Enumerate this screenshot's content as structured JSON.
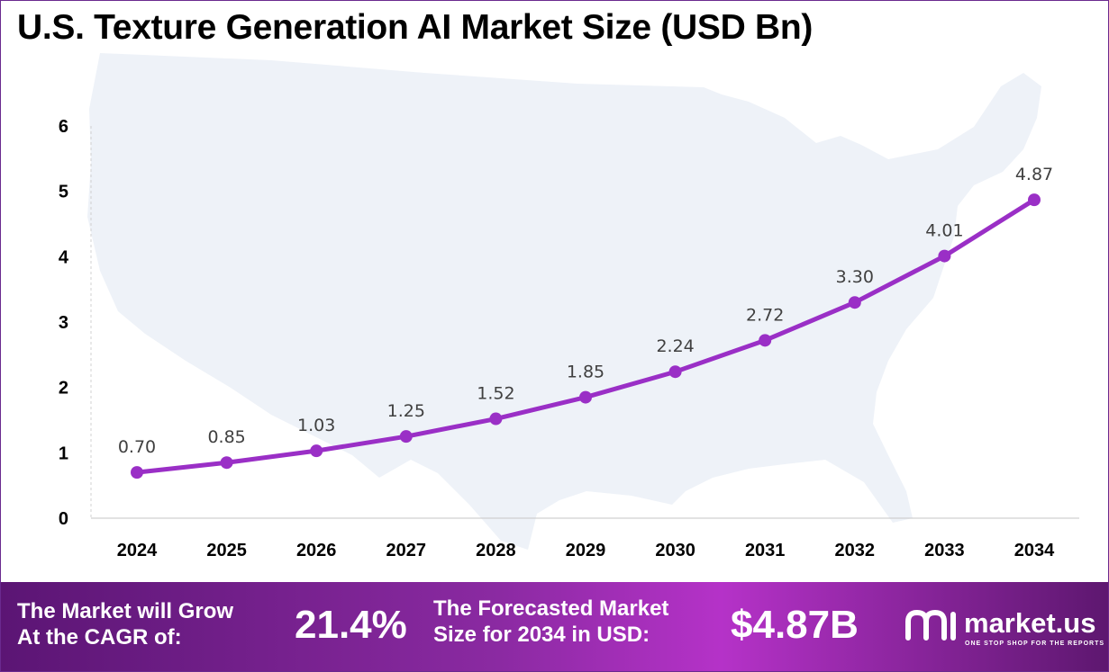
{
  "title": "U.S. Texture Generation AI Market Size (USD Bn)",
  "colors": {
    "line": "#9a2fc6",
    "marker": "#9a2fc6",
    "map": "#eef2f8",
    "footer_start": "#5b1574",
    "footer_end": "#b532c8"
  },
  "chart_data": {
    "type": "line",
    "title": "U.S. Texture Generation AI Market Size (USD Bn)",
    "xlabel": "",
    "ylabel": "",
    "categories": [
      "2024",
      "2025",
      "2026",
      "2027",
      "2028",
      "2029",
      "2030",
      "2031",
      "2032",
      "2033",
      "2034"
    ],
    "series": [
      {
        "values": [
          0.7,
          0.85,
          1.03,
          1.25,
          1.52,
          1.85,
          2.24,
          2.72,
          3.3,
          4.01,
          4.87
        ]
      }
    ],
    "data_labels": [
      "0.70",
      "0.85",
      "1.03",
      "1.25",
      "1.52",
      "1.85",
      "2.24",
      "2.72",
      "3.30",
      "4.01",
      "4.87"
    ],
    "ylim": [
      0,
      6
    ],
    "yticks": [
      "0",
      "1",
      "2",
      "3",
      "4",
      "5",
      "6"
    ],
    "grid": false,
    "legend": "none"
  },
  "footer": {
    "cagr_label_line1": "The Market will Grow",
    "cagr_label_line2": "At the CAGR of:",
    "cagr_value": "21.4%",
    "forecast_label_line1": "The Forecasted Market",
    "forecast_label_line2": "Size for 2034 in USD:",
    "forecast_value": "$4.87B",
    "brand_name": "market.us",
    "brand_tagline": "ONE STOP SHOP FOR THE REPORTS",
    "brand_icon": "market-us-logo-icon"
  }
}
